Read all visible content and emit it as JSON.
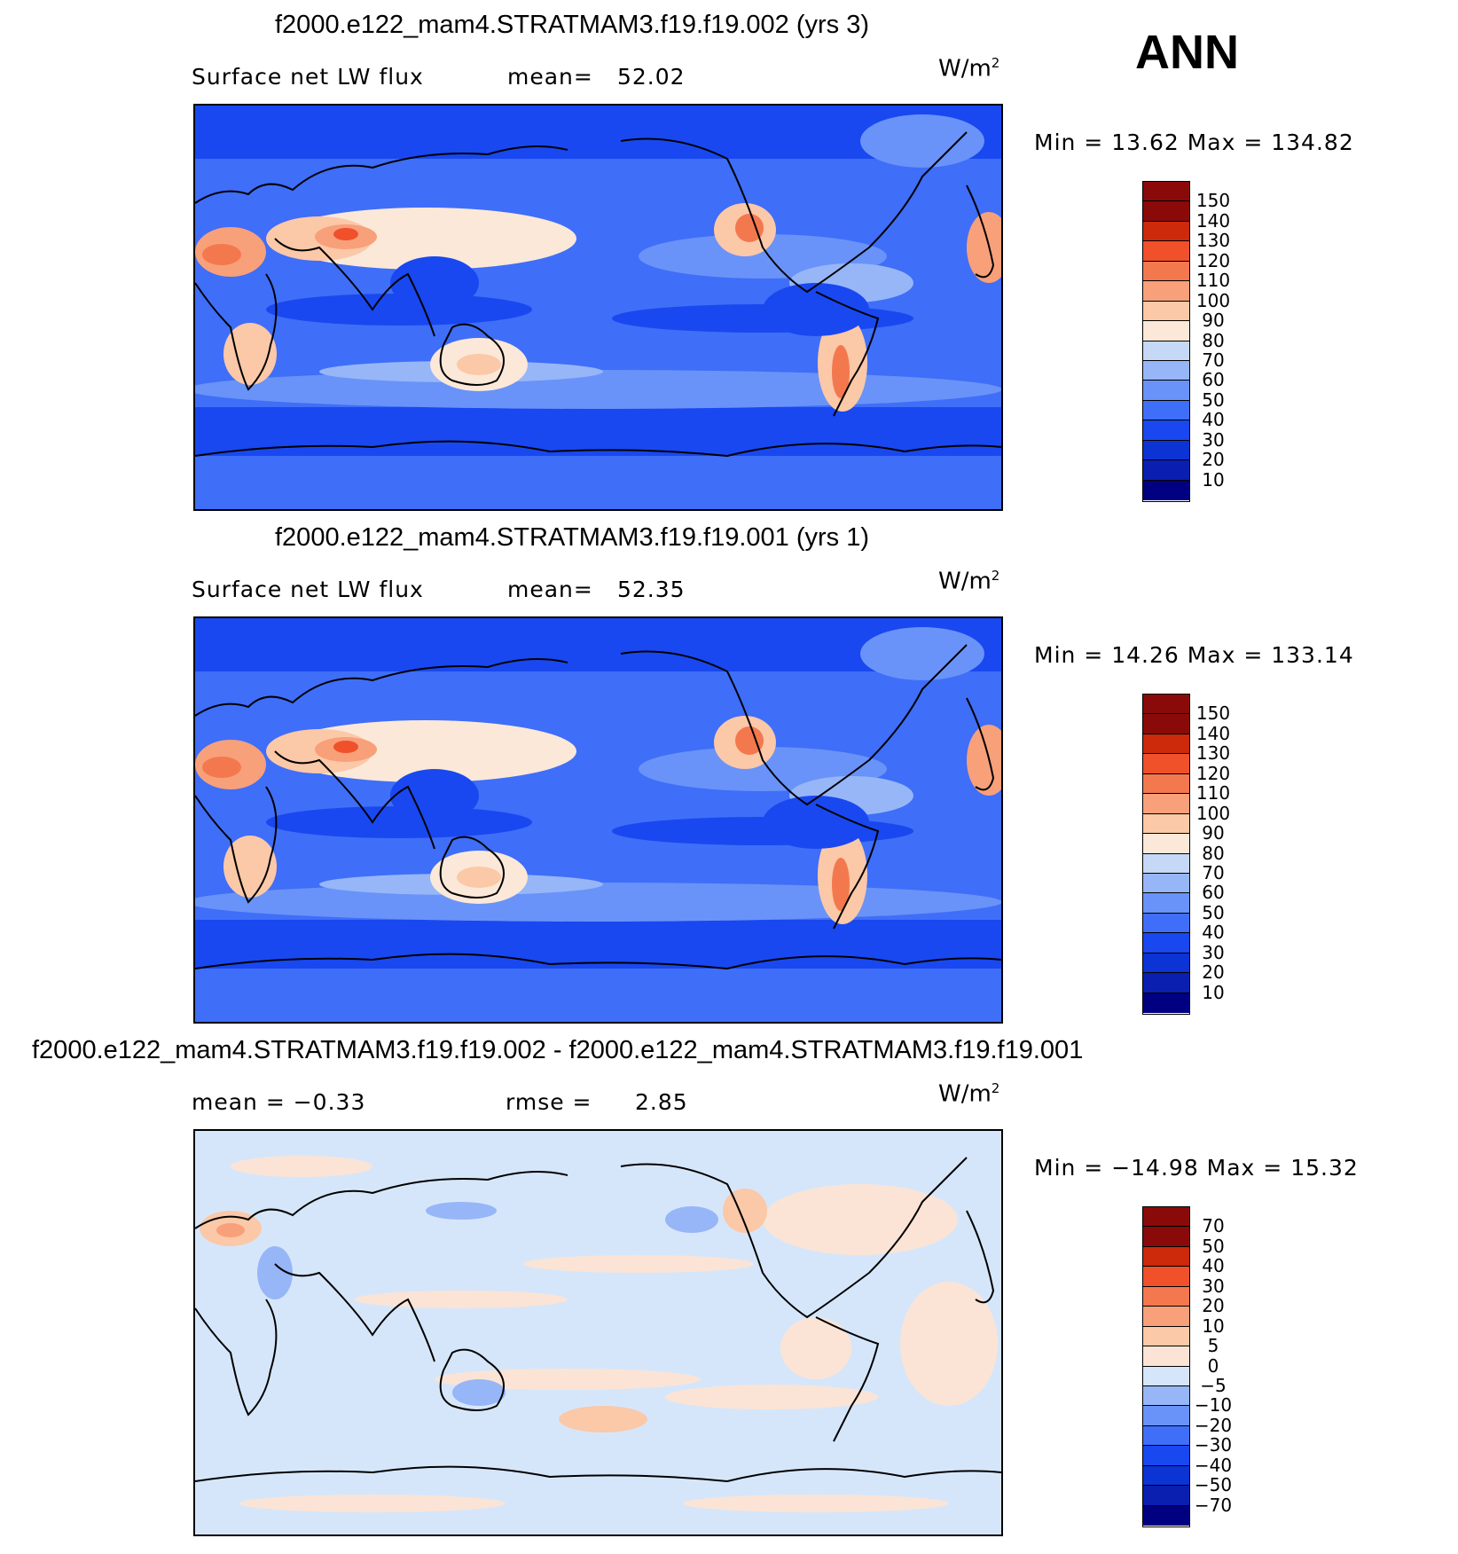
{
  "season": "ANN",
  "colors": {
    "abs_palette": [
      "#000080",
      "#0a1fb0",
      "#0c33d4",
      "#1948f0",
      "#3f6ef8",
      "#6993f8",
      "#96b6f8",
      "#c5d9f6",
      "#fbe8d8",
      "#fbc8a8",
      "#f8a07a",
      "#f4784e",
      "#f0502a",
      "#cc2a0a",
      "#8a0a0a"
    ],
    "diff_palette": [
      "#000080",
      "#0a1fb0",
      "#0c33d4",
      "#1948f0",
      "#3f6ef8",
      "#6993f8",
      "#96b6f8",
      "#d6e6fa",
      "#fbe4d6",
      "#fbc8a8",
      "#f8a07a",
      "#f4784e",
      "#f0502a",
      "#cc2a0a",
      "#8a0a0a"
    ]
  },
  "panels": [
    {
      "title": "f2000.e122_mam4.STRATMAM3.f19.f19.002 (yrs 3)",
      "left_label": "Surface net LW flux",
      "stat_label": "mean=",
      "stat_value": "52.02",
      "units": "W/m",
      "units_sup": "2",
      "minmax": "Min =   13.62 Max = 134.82",
      "colorbar_labels": [
        "150",
        "140",
        "130",
        "120",
        "110",
        "100",
        "90",
        "80",
        "70",
        "60",
        "50",
        "40",
        "30",
        "20",
        "10"
      ],
      "palette": "abs"
    },
    {
      "title": "f2000.e122_mam4.STRATMAM3.f19.f19.001 (yrs 1)",
      "left_label": "Surface net LW flux",
      "stat_label": "mean=",
      "stat_value": "52.35",
      "units": "W/m",
      "units_sup": "2",
      "minmax": "Min =   14.26 Max = 133.14",
      "colorbar_labels": [
        "150",
        "140",
        "130",
        "120",
        "110",
        "100",
        "90",
        "80",
        "70",
        "60",
        "50",
        "40",
        "30",
        "20",
        "10"
      ],
      "palette": "abs"
    },
    {
      "title": "f2000.e122_mam4.STRATMAM3.f19.f19.002 - f2000.e122_mam4.STRATMAM3.f19.f19.001",
      "left_label": "mean =   −0.33",
      "stat_label": "rmse =",
      "stat_value": "2.85",
      "units": "W/m",
      "units_sup": "2",
      "minmax": "Min = −14.98 Max =   15.32",
      "colorbar_labels": [
        "70",
        "50",
        "40",
        "30",
        "20",
        "10",
        "5",
        "0",
        "−5",
        "−10",
        "−20",
        "−30",
        "−40",
        "−50",
        "−70"
      ],
      "palette": "diff"
    }
  ]
}
